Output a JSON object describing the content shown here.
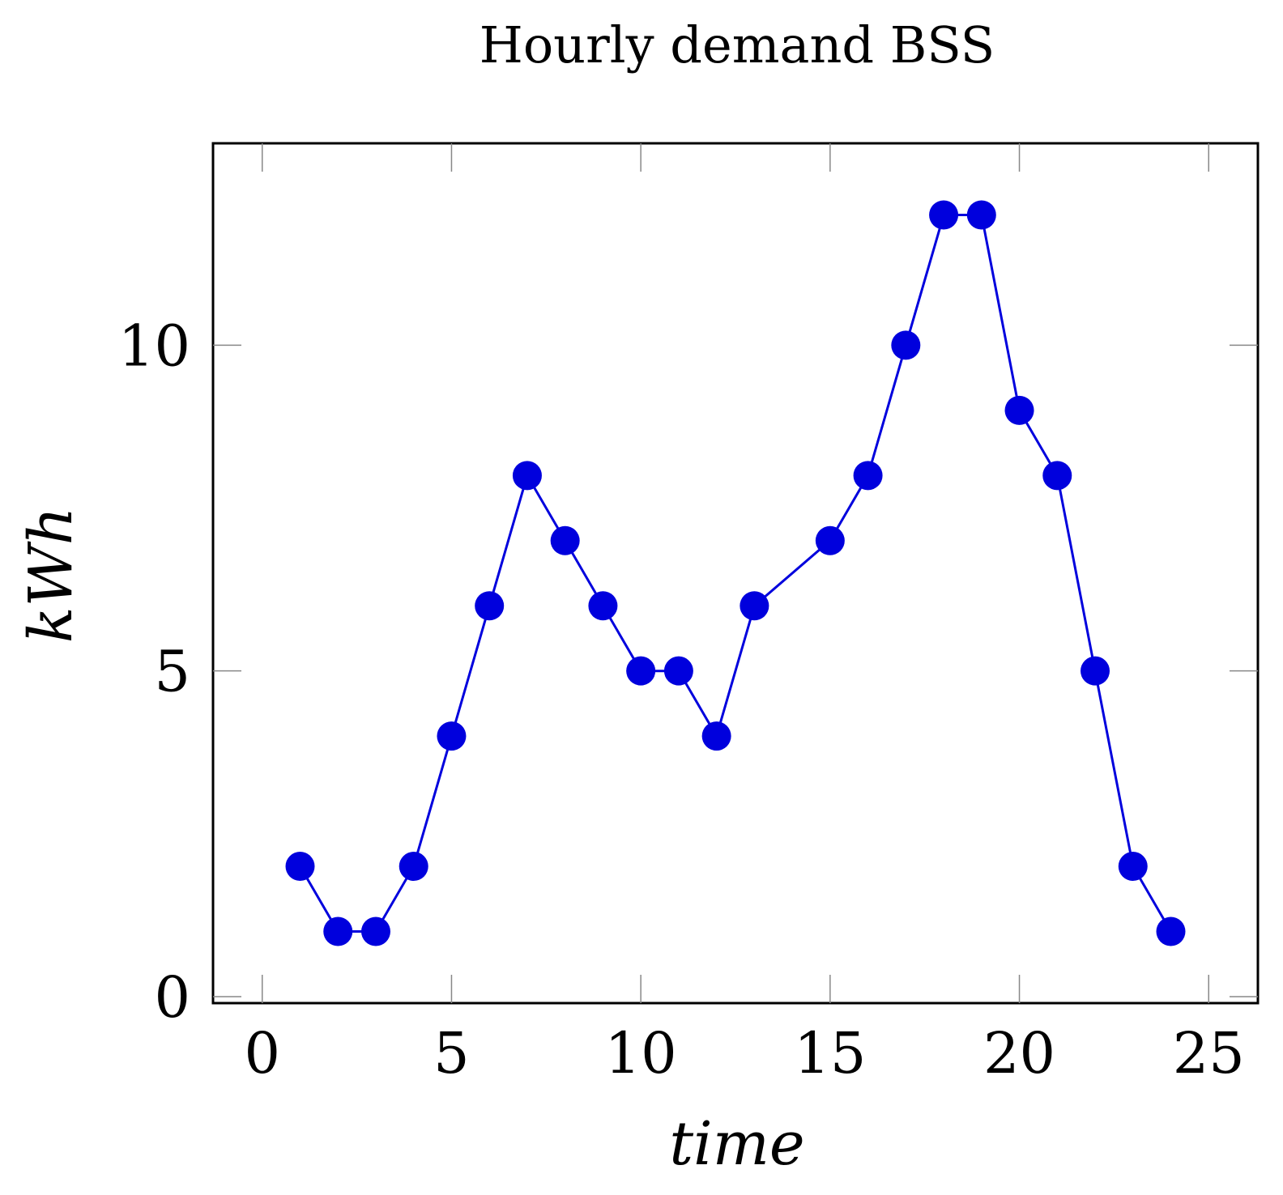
{
  "chart_data": {
    "type": "line",
    "title": "Hourly demand BSS",
    "xlabel": "time",
    "ylabel": "kWh",
    "xlim": [
      -1.3,
      26.3
    ],
    "ylim": [
      -0.1,
      13.1
    ],
    "x_ticks": [
      0,
      5,
      10,
      15,
      20,
      25
    ],
    "y_ticks": [
      0,
      5,
      10
    ],
    "x_tick_labels": [
      "0",
      "5",
      "10",
      "15",
      "20",
      "25"
    ],
    "y_tick_labels": [
      "0",
      "5",
      "10"
    ],
    "grid": false,
    "color": "#0000dd",
    "series": [
      {
        "x": [
          1,
          2,
          3,
          4,
          5,
          6,
          7,
          8,
          9,
          10,
          11,
          12,
          13,
          15,
          16,
          17,
          18,
          19,
          20,
          21,
          22,
          23,
          24
        ],
        "y": [
          2,
          1,
          1,
          2,
          4,
          6,
          8,
          7,
          6,
          5,
          5,
          4,
          6,
          7,
          8,
          10,
          12,
          12,
          9,
          8,
          5,
          2,
          1
        ]
      }
    ]
  }
}
